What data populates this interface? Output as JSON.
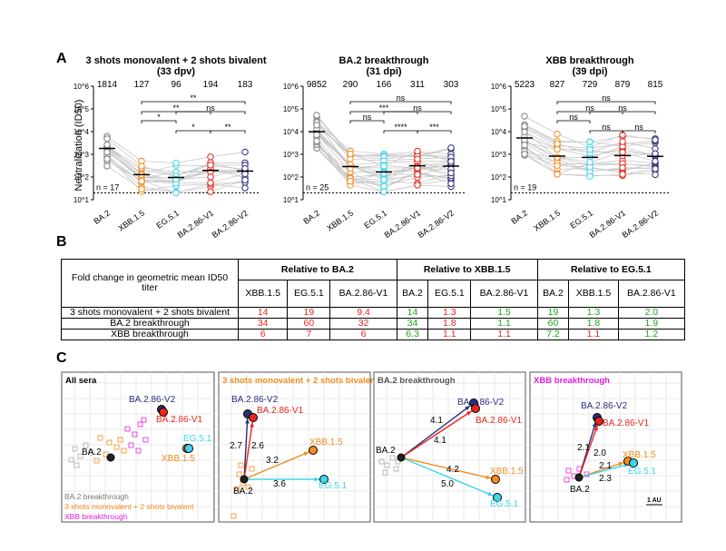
{
  "panels": {
    "A": "A",
    "B": "B",
    "C": "C"
  },
  "panelA": {
    "ylabel": "Neutralization (ID50)",
    "yticks": [
      "10^1",
      "10^2",
      "10^3",
      "10^4",
      "10^5",
      "10^6"
    ],
    "cohorts": [
      {
        "title_line1": "3 shots monovalent + 2 shots bivalent",
        "title_line2": "(33 dpv)",
        "n_label": "n = 17",
        "gmt": [
          "1814",
          "127",
          "96",
          "194",
          "183"
        ],
        "categories": [
          "BA.2",
          "XBB.1.5",
          "EG.5.1",
          "BA.2.86-V1",
          "BA.2.86-V2"
        ],
        "significance": [
          "**",
          "**",
          "*",
          "*",
          "**",
          "ns"
        ]
      },
      {
        "title_line1": "BA.2 breakthrough",
        "title_line2": "(31 dpi)",
        "n_label": "n = 25",
        "gmt": [
          "9852",
          "290",
          "166",
          "311",
          "303"
        ],
        "categories": [
          "BA.2",
          "XBB.1.5",
          "EG.5.1",
          "BA.2.86-V1",
          "BA.2.86-V2"
        ],
        "significance": [
          "ns",
          "***",
          "ns",
          "****",
          "***",
          "ns"
        ]
      },
      {
        "title_line1": "XBB breakthrough",
        "title_line2": "(39 dpi)",
        "n_label": "n = 19",
        "gmt": [
          "5223",
          "827",
          "729",
          "879",
          "815"
        ],
        "categories": [
          "BA.2",
          "XBB.1.5",
          "EG.5.1",
          "BA.2.86-V1",
          "BA.2.86-V2"
        ],
        "significance": [
          "ns",
          "ns",
          "ns",
          "ns",
          "ns",
          "ns"
        ]
      }
    ],
    "colors": {
      "BA.2": "#7f7f7f",
      "XBB.1.5": "#f28c1e",
      "EG.5.1": "#3fd6ee",
      "BA.2.86-V1": "#e8261b",
      "BA.2.86-V2": "#2b2d7c"
    }
  },
  "panelB": {
    "row_header": "Fold change in geometric mean ID50 titer",
    "groups": [
      "Relative to BA.2",
      "Relative to XBB.1.5",
      "Relative to EG.5.1"
    ],
    "subheaders": [
      [
        "XBB.1.5",
        "EG.5.1",
        "BA.2.86-V1"
      ],
      [
        "BA.2",
        "EG.5.1",
        "BA.2.86-V1"
      ],
      [
        "BA.2",
        "XBB.1.5",
        "BA.2.86-V1"
      ]
    ],
    "rows": [
      {
        "label": "3 shots monovalent + 2 shots bivalent",
        "values": [
          "14",
          "19",
          "9.4",
          "14",
          "1.3",
          "1.5",
          "19",
          "1.3",
          "2.0"
        ]
      },
      {
        "label": "BA.2 breakthrough",
        "values": [
          "34",
          "60",
          "32",
          "34",
          "1.8",
          "1.1",
          "60",
          "1.8",
          "1.9"
        ]
      },
      {
        "label": "XBB breakthrough",
        "values": [
          "6",
          "7",
          "6",
          "6.3",
          "1.1",
          "1.1",
          "7.2",
          "1.1",
          "1.2"
        ]
      }
    ]
  },
  "panelC": {
    "maps": [
      {
        "title": "All sera",
        "title_color": "#000000",
        "labels": [
          "BA.2.86-V2",
          "BA.2.86-V1",
          "EG.5.1",
          "XBB.1.5",
          "BA.2"
        ],
        "legend": [
          "BA.2 breakthrough",
          "3 shots monovalent + 2 shots bivalent",
          "XBB breakthrough"
        ]
      },
      {
        "title": "3 shots monovalent + 2 shots bivalent",
        "title_color": "#f28c1e",
        "labels": [
          "BA.2.86-V2",
          "BA.2.86-V1",
          "XBB.1.5",
          "EG.5.1",
          "BA.2"
        ],
        "distances": [
          "2.7",
          "2.6",
          "3.2",
          "3.6"
        ]
      },
      {
        "title": "BA.2 breakthrough",
        "title_color": "#555555",
        "labels": [
          "BA.2.86-V2",
          "BA.2.86-V1",
          "XBB.1.5",
          "EG.5.1",
          "BA.2"
        ],
        "distances": [
          "4.1",
          "4.1",
          "4.2",
          "5.0"
        ]
      },
      {
        "title": "XBB breakthrough",
        "title_color": "#e020e0",
        "labels": [
          "BA.2.86-V2",
          "BA.2.86-V1",
          "XBB.1.5",
          "EG.5.1",
          "BA.2"
        ],
        "distances": [
          "2.1",
          "2.0",
          "2.1",
          "2.3"
        ],
        "scale": "1 AU"
      }
    ]
  }
}
